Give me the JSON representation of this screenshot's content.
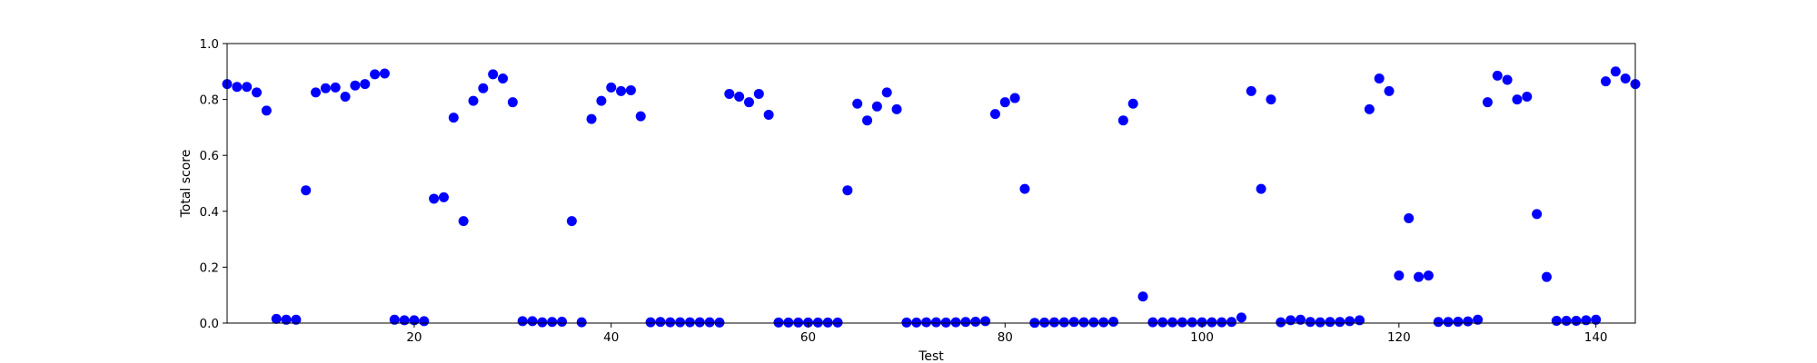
{
  "chart_data": {
    "type": "scatter",
    "title": "",
    "xlabel": "Test",
    "ylabel": "Total score",
    "xlim": [
      1,
      144
    ],
    "ylim": [
      0.0,
      1.0
    ],
    "xticks": [
      20,
      40,
      60,
      80,
      100,
      120,
      140
    ],
    "xtick_labels": [
      "20",
      "40",
      "60",
      "80",
      "100",
      "120",
      "140"
    ],
    "yticks": [
      0.0,
      0.2,
      0.4,
      0.6,
      0.8,
      1.0
    ],
    "ytick_labels": [
      "0.0",
      "0.2",
      "0.4",
      "0.6",
      "0.8",
      "1.0"
    ],
    "grid": false,
    "legend": "none",
    "marker_color": "#0000ff",
    "series": [
      {
        "x": [
          1,
          2,
          3,
          4,
          5,
          6,
          7,
          8,
          9,
          10,
          11,
          12,
          13,
          14,
          15,
          16,
          17,
          18,
          19,
          20,
          21,
          22,
          23,
          24,
          25,
          26,
          27,
          28,
          29,
          30,
          31,
          32,
          33,
          34,
          35,
          36,
          37,
          38,
          39,
          40,
          41,
          42,
          43,
          44,
          45,
          46,
          47,
          48,
          49,
          50,
          51,
          52,
          53,
          54,
          55,
          56,
          57,
          58,
          59,
          60,
          61,
          62,
          63,
          64,
          65,
          66,
          67,
          68,
          69,
          70,
          71,
          72,
          73,
          74,
          75,
          76,
          77,
          78,
          79,
          80,
          81,
          82,
          83,
          84,
          85,
          86,
          87,
          88,
          89,
          90,
          91,
          92,
          93,
          94,
          95,
          96,
          97,
          98,
          99,
          100,
          101,
          102,
          103,
          104,
          105,
          106,
          107,
          108,
          109,
          110,
          111,
          112,
          113,
          114,
          115,
          116,
          117,
          118,
          119,
          120,
          121,
          122,
          123,
          124,
          125,
          126,
          127,
          128,
          129,
          130,
          131,
          132,
          133,
          134,
          135,
          136,
          137,
          138,
          139,
          140,
          141,
          142,
          143,
          144
        ],
        "y": [
          0.855,
          0.845,
          0.845,
          0.825,
          0.76,
          0.015,
          0.012,
          0.012,
          0.475,
          0.825,
          0.84,
          0.843,
          0.81,
          0.85,
          0.855,
          0.89,
          0.893,
          0.012,
          0.01,
          0.01,
          0.007,
          0.445,
          0.45,
          0.735,
          0.365,
          0.795,
          0.84,
          0.89,
          0.875,
          0.79,
          0.007,
          0.007,
          0.003,
          0.004,
          0.005,
          0.365,
          0.003,
          0.73,
          0.795,
          0.843,
          0.83,
          0.833,
          0.74,
          0.003,
          0.004,
          0.003,
          0.003,
          0.003,
          0.003,
          0.003,
          0.002,
          0.82,
          0.81,
          0.79,
          0.82,
          0.745,
          0.002,
          0.002,
          0.002,
          0.002,
          0.002,
          0.002,
          0.002,
          0.475,
          0.785,
          0.725,
          0.775,
          0.825,
          0.765,
          0.002,
          0.002,
          0.003,
          0.003,
          0.002,
          0.003,
          0.004,
          0.005,
          0.007,
          0.748,
          0.79,
          0.805,
          0.48,
          0.001,
          0.002,
          0.003,
          0.003,
          0.004,
          0.003,
          0.003,
          0.003,
          0.005,
          0.725,
          0.785,
          0.095,
          0.003,
          0.003,
          0.003,
          0.003,
          0.003,
          0.003,
          0.003,
          0.003,
          0.004,
          0.02,
          0.83,
          0.48,
          0.8,
          0.003,
          0.01,
          0.012,
          0.004,
          0.003,
          0.004,
          0.004,
          0.007,
          0.01,
          0.765,
          0.875,
          0.83,
          0.17,
          0.375,
          0.165,
          0.17,
          0.004,
          0.004,
          0.005,
          0.006,
          0.012,
          0.79,
          0.885,
          0.87,
          0.8,
          0.81,
          0.39,
          0.165,
          0.008,
          0.008,
          0.008,
          0.01,
          0.012,
          0.865,
          0.9,
          0.875,
          0.855
        ]
      }
    ]
  }
}
